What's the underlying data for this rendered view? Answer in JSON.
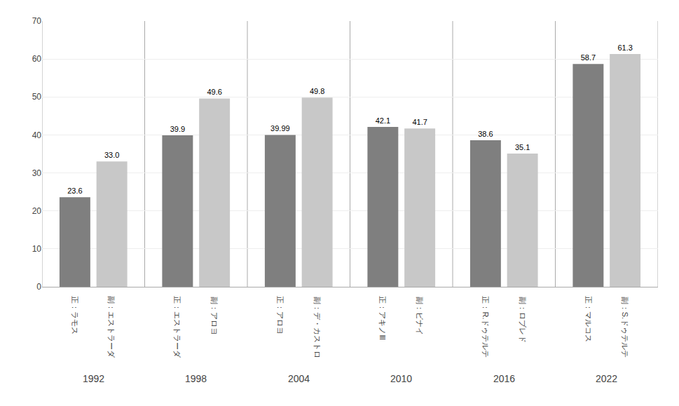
{
  "chart_data": {
    "type": "bar",
    "categories": [
      "1992",
      "1998",
      "2004",
      "2010",
      "2016",
      "2022"
    ],
    "series": [
      {
        "color": "#7f7f7f",
        "values": [
          23.6,
          39.9,
          39.99,
          42.1,
          38.6,
          58.7
        ],
        "value_labels": [
          "23.6",
          "39.9",
          "39.99",
          "42.1",
          "38.6",
          "58.7"
        ],
        "labels": [
          "正：ラモス",
          "正：エストラーダ",
          "正：アロヨ",
          "正：アキノⅢ",
          "正：R.ドゥテルテ",
          "正：マルコス"
        ]
      },
      {
        "color": "#c8c8c8",
        "values": [
          33.0,
          49.6,
          49.8,
          41.7,
          35.1,
          61.3
        ],
        "value_labels": [
          "33.0",
          "49.6",
          "49.8",
          "41.7",
          "35.1",
          "61.3"
        ],
        "labels": [
          "副：エストラーダ",
          "副：アロヨ",
          "副：デ・カストロ",
          "副：ビナイ",
          "副：ロブレド",
          "副：S.ドゥテルテ"
        ]
      }
    ],
    "ylim": [
      0,
      70
    ],
    "yticks": [
      0,
      10,
      20,
      30,
      40,
      50,
      60,
      70
    ],
    "grid": true,
    "data_labels": true
  }
}
